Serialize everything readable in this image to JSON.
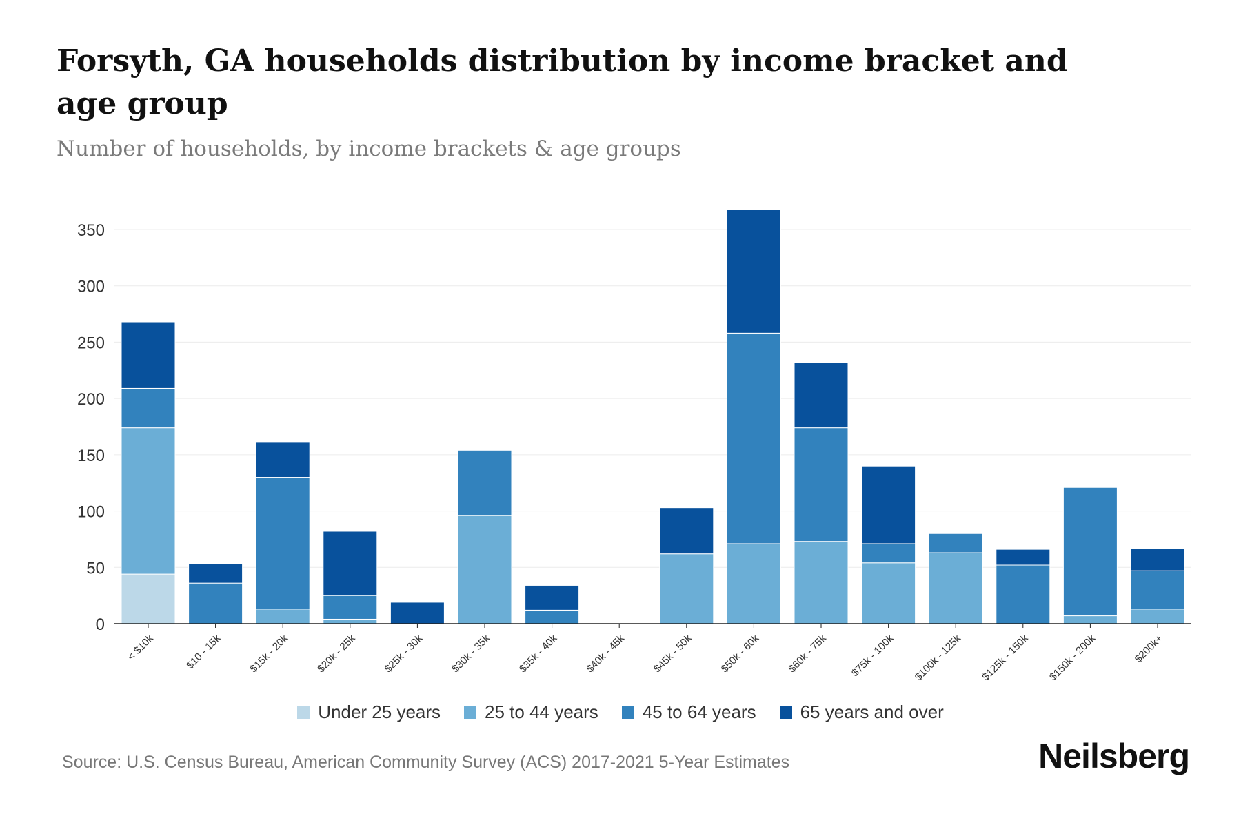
{
  "title": "Forsyth, GA households distribution by income bracket and age group",
  "subtitle": "Number of households, by income brackets & age groups",
  "source": "Source: U.S. Census Bureau, American Community Survey (ACS) 2017-2021 5-Year Estimates",
  "logo": "Neilsberg",
  "chart_data": {
    "type": "bar",
    "stacked": true,
    "title": "Forsyth, GA households distribution by income bracket and age group",
    "xlabel": "",
    "ylabel": "Number of households",
    "ylim": [
      0,
      370
    ],
    "yticks": [
      0,
      50,
      100,
      150,
      200,
      250,
      300,
      350
    ],
    "grid": true,
    "legend_position": "bottom",
    "categories": [
      "< $10k",
      "$10 - 15k",
      "$15k - 20k",
      "$20k - 25k",
      "$25k - 30k",
      "$30k - 35k",
      "$35k - 40k",
      "$40k - 45k",
      "$45k - 50k",
      "$50k - 60k",
      "$60k - 75k",
      "$75k - 100k",
      "$100k - 125k",
      "$125k - 150k",
      "$150k - 200k",
      "$200k+"
    ],
    "series": [
      {
        "name": "Under 25 years",
        "color": "#bcd8e8",
        "values": [
          44,
          0,
          0,
          0,
          0,
          0,
          0,
          0,
          0,
          0,
          0,
          0,
          0,
          0,
          0,
          0
        ]
      },
      {
        "name": "25 to 44 years",
        "color": "#6baed6",
        "values": [
          130,
          0,
          13,
          4,
          0,
          96,
          0,
          0,
          62,
          71,
          73,
          54,
          63,
          0,
          7,
          13
        ]
      },
      {
        "name": "45 to 64 years",
        "color": "#3282bd",
        "values": [
          35,
          36,
          117,
          21,
          0,
          58,
          12,
          0,
          0,
          187,
          101,
          17,
          17,
          52,
          114,
          34
        ]
      },
      {
        "name": "65 years and over",
        "color": "#08519c",
        "values": [
          59,
          17,
          31,
          57,
          19,
          0,
          22,
          0,
          41,
          110,
          58,
          69,
          0,
          14,
          0,
          20
        ]
      }
    ]
  }
}
